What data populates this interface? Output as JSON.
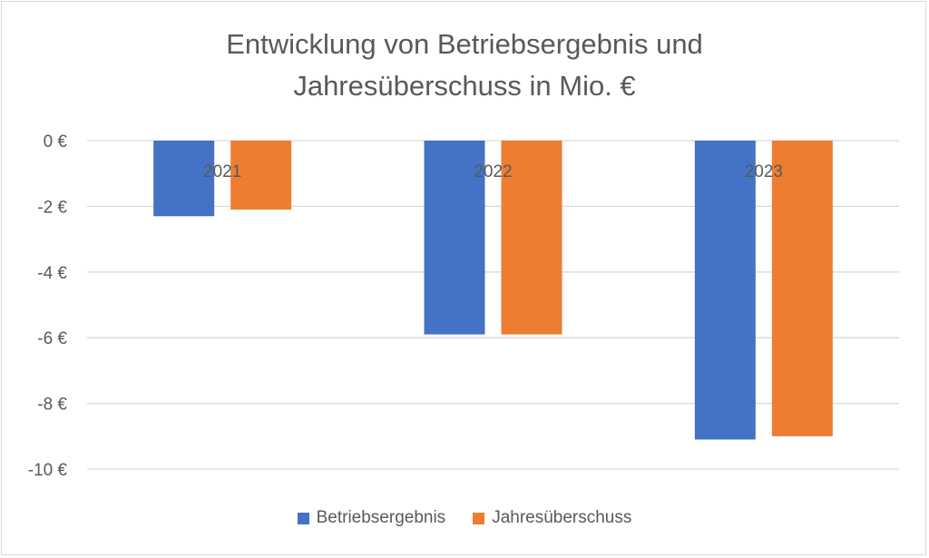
{
  "chart_data": {
    "type": "bar",
    "title": "Entwicklung von Betriebsergebnis und Jahresüberschuss in Mio. €",
    "title_lines": [
      "Entwicklung von Betriebsergebnis und",
      "Jahresüberschuss in Mio. €"
    ],
    "categories": [
      "2021",
      "2022",
      "2023"
    ],
    "series": [
      {
        "name": "Betriebsergebnis",
        "color": "#4472c4",
        "values": [
          -2.3,
          -5.9,
          -9.1
        ]
      },
      {
        "name": "Jahresüberschuss",
        "color": "#ed7d31",
        "values": [
          -2.1,
          -5.9,
          -9.0
        ]
      }
    ],
    "xlabel": "",
    "ylabel": "",
    "ylim": [
      -10,
      0
    ],
    "yticks": [
      0,
      -2,
      -4,
      -6,
      -8,
      -10
    ],
    "ytick_labels": [
      "0 €",
      "-2 €",
      "-4 €",
      "-6 €",
      "-8 €",
      "-10 €"
    ],
    "grid": true,
    "legend_position": "bottom",
    "category_labels_position": "inside-near-zero"
  }
}
